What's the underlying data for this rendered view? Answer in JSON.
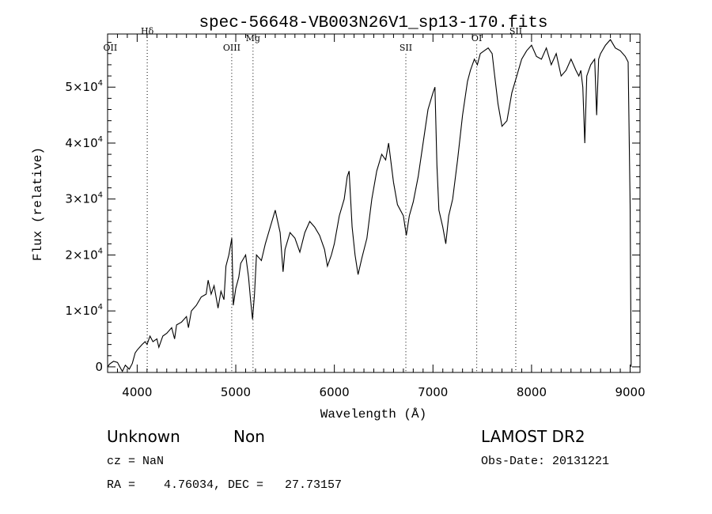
{
  "chart_data": {
    "type": "line",
    "title": "spec-56648-VB003N26V1_sp13-170.fits",
    "xlabel": "Wavelength (Å)",
    "ylabel": "Flux (relative)",
    "xlim": [
      3700,
      9100
    ],
    "ylim": [
      -1000,
      59500
    ],
    "x_ticks": [
      4000,
      5000,
      6000,
      7000,
      8000,
      9000
    ],
    "y_ticks": [
      {
        "value": 0,
        "mant": "0",
        "exp": ""
      },
      {
        "value": 10000,
        "mant": "1×10",
        "exp": "4"
      },
      {
        "value": 20000,
        "mant": "2×10",
        "exp": "4"
      },
      {
        "value": 30000,
        "mant": "3×10",
        "exp": "4"
      },
      {
        "value": 40000,
        "mant": "4×10",
        "exp": "4"
      },
      {
        "value": 50000,
        "mant": "5×10",
        "exp": "4"
      }
    ],
    "line_markers": [
      {
        "label": "OII",
        "x": 3727,
        "label_y": 56500,
        "show_line": false
      },
      {
        "label": "Hδ",
        "x": 4102,
        "label_y": 59500,
        "show_line": true
      },
      {
        "label": "OIII",
        "x": 4959,
        "label_y": 56500,
        "show_line": true
      },
      {
        "label": "Mg",
        "x": 5175,
        "label_y": 58200,
        "show_line": true
      },
      {
        "label": "SII",
        "x": 6725,
        "label_y": 56500,
        "show_line": true
      },
      {
        "label": "OI",
        "x": 7444,
        "label_y": 58200,
        "show_line": true
      },
      {
        "label": "SII",
        "x": 7840,
        "label_y": 59500,
        "show_line": true
      }
    ],
    "series": [
      {
        "values": [
          [
            3700,
            0
          ],
          [
            3720,
            500
          ],
          [
            3760,
            1000
          ],
          [
            3800,
            800
          ],
          [
            3830,
            -200
          ],
          [
            3850,
            -800
          ],
          [
            3880,
            300
          ],
          [
            3920,
            -400
          ],
          [
            3950,
            600
          ],
          [
            3980,
            2500
          ],
          [
            4000,
            3000
          ],
          [
            4050,
            4000
          ],
          [
            4080,
            4500
          ],
          [
            4100,
            4000
          ],
          [
            4130,
            5500
          ],
          [
            4160,
            4500
          ],
          [
            4200,
            5000
          ],
          [
            4220,
            3500
          ],
          [
            4260,
            5500
          ],
          [
            4300,
            6000
          ],
          [
            4350,
            7000
          ],
          [
            4380,
            5000
          ],
          [
            4400,
            7500
          ],
          [
            4450,
            8000
          ],
          [
            4500,
            9000
          ],
          [
            4520,
            7000
          ],
          [
            4550,
            10000
          ],
          [
            4600,
            11000
          ],
          [
            4650,
            12500
          ],
          [
            4700,
            13000
          ],
          [
            4720,
            15500
          ],
          [
            4750,
            13000
          ],
          [
            4780,
            14500
          ],
          [
            4820,
            10500
          ],
          [
            4850,
            13500
          ],
          [
            4880,
            12000
          ],
          [
            4900,
            18000
          ],
          [
            4930,
            20000
          ],
          [
            4960,
            23000
          ],
          [
            4975,
            11000
          ],
          [
            5000,
            14000
          ],
          [
            5030,
            16000
          ],
          [
            5050,
            18500
          ],
          [
            5100,
            20000
          ],
          [
            5130,
            16000
          ],
          [
            5150,
            12000
          ],
          [
            5170,
            8500
          ],
          [
            5190,
            13000
          ],
          [
            5210,
            20000
          ],
          [
            5260,
            19000
          ],
          [
            5300,
            22000
          ],
          [
            5350,
            25000
          ],
          [
            5400,
            28000
          ],
          [
            5450,
            24000
          ],
          [
            5480,
            17000
          ],
          [
            5500,
            21000
          ],
          [
            5550,
            24000
          ],
          [
            5600,
            23000
          ],
          [
            5650,
            20500
          ],
          [
            5700,
            24000
          ],
          [
            5750,
            26000
          ],
          [
            5800,
            25000
          ],
          [
            5850,
            23500
          ],
          [
            5900,
            21000
          ],
          [
            5930,
            18000
          ],
          [
            5970,
            20000
          ],
          [
            6000,
            22000
          ],
          [
            6050,
            27000
          ],
          [
            6100,
            30000
          ],
          [
            6130,
            34000
          ],
          [
            6150,
            35000
          ],
          [
            6180,
            25000
          ],
          [
            6210,
            20000
          ],
          [
            6240,
            16500
          ],
          [
            6280,
            19500
          ],
          [
            6330,
            23000
          ],
          [
            6380,
            30000
          ],
          [
            6430,
            35000
          ],
          [
            6480,
            38000
          ],
          [
            6520,
            37000
          ],
          [
            6550,
            40000
          ],
          [
            6600,
            33000
          ],
          [
            6640,
            29000
          ],
          [
            6700,
            27000
          ],
          [
            6730,
            23500
          ],
          [
            6760,
            27000
          ],
          [
            6800,
            29500
          ],
          [
            6850,
            34000
          ],
          [
            6900,
            40000
          ],
          [
            6950,
            46000
          ],
          [
            7000,
            49000
          ],
          [
            7020,
            50000
          ],
          [
            7040,
            36000
          ],
          [
            7060,
            28000
          ],
          [
            7100,
            25000
          ],
          [
            7130,
            22000
          ],
          [
            7160,
            27000
          ],
          [
            7200,
            30000
          ],
          [
            7250,
            37000
          ],
          [
            7300,
            45000
          ],
          [
            7350,
            51000
          ],
          [
            7380,
            53000
          ],
          [
            7420,
            55000
          ],
          [
            7450,
            54000
          ],
          [
            7480,
            56000
          ],
          [
            7520,
            56500
          ],
          [
            7560,
            57000
          ],
          [
            7600,
            56000
          ],
          [
            7620,
            53000
          ],
          [
            7640,
            50000
          ],
          [
            7660,
            47000
          ],
          [
            7680,
            45000
          ],
          [
            7700,
            43000
          ],
          [
            7750,
            44000
          ],
          [
            7800,
            49000
          ],
          [
            7850,
            52000
          ],
          [
            7900,
            55000
          ],
          [
            7950,
            56500
          ],
          [
            8000,
            57500
          ],
          [
            8050,
            55500
          ],
          [
            8100,
            55000
          ],
          [
            8150,
            57000
          ],
          [
            8200,
            54000
          ],
          [
            8250,
            56000
          ],
          [
            8300,
            52000
          ],
          [
            8350,
            53000
          ],
          [
            8400,
            55000
          ],
          [
            8450,
            53000
          ],
          [
            8480,
            52000
          ],
          [
            8500,
            53000
          ],
          [
            8520,
            50000
          ],
          [
            8540,
            40000
          ],
          [
            8560,
            52000
          ],
          [
            8600,
            54000
          ],
          [
            8640,
            55000
          ],
          [
            8660,
            45000
          ],
          [
            8680,
            55000
          ],
          [
            8700,
            56000
          ],
          [
            8750,
            57500
          ],
          [
            8800,
            58500
          ],
          [
            8850,
            57000
          ],
          [
            8900,
            56500
          ],
          [
            8950,
            55500
          ],
          [
            8980,
            54500
          ],
          [
            9000,
            29000
          ],
          [
            9010,
            0
          ]
        ]
      }
    ]
  },
  "footer": {
    "class_text": "Unknown",
    "subclass_text": "Non",
    "cz_text": "cz = NaN",
    "coords_text": "RA =    4.76034, DEC =   27.73157",
    "survey_text": "LAMOST DR2",
    "obs_date_text": "Obs-Date: 20131221"
  }
}
